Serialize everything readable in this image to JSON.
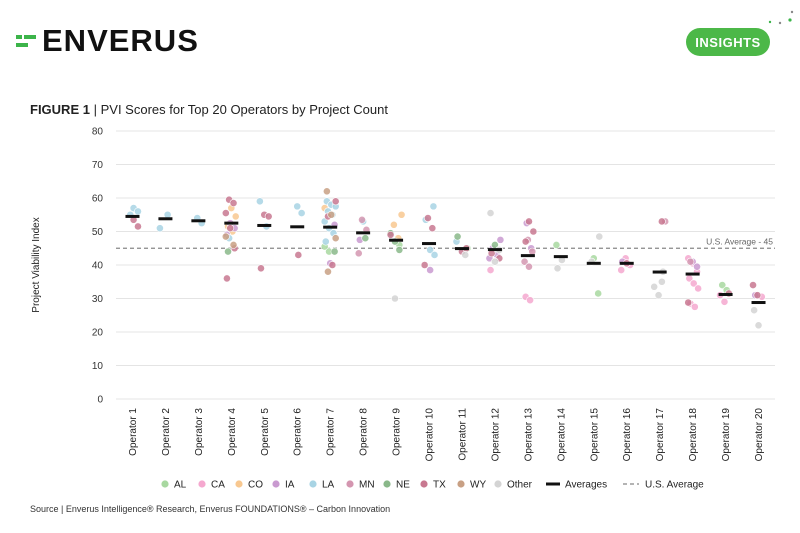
{
  "brand": {
    "name": "ENVERUS",
    "badge": "INSIGHTS",
    "accent": "#4cb848"
  },
  "figure": {
    "label": "FIGURE 1",
    "separator": "|",
    "title": "PVI Scores for Top 20 Operators by Project Count"
  },
  "source": "Source | Enverus Intelligence® Research, Enverus FOUNDATIONS® – Carbon Innovation",
  "chart_data": {
    "type": "scatter",
    "ylabel": "Project Viability Index",
    "ylim": [
      0,
      80
    ],
    "yticks": [
      0,
      10,
      20,
      30,
      40,
      50,
      60,
      70,
      80
    ],
    "categories": [
      "Operator 1",
      "Operator 2",
      "Operator 3",
      "Operator 4",
      "Operator 5",
      "Operator 6",
      "Operator 7",
      "Operator 8",
      "Operator 9",
      "Operator 10",
      "Operator 11",
      "Operator 12",
      "Operator 13",
      "Operator 14",
      "Operator 15",
      "Operator 16",
      "Operator 17",
      "Operator 18",
      "Operator 19",
      "Operator 20"
    ],
    "reference_line": {
      "value": 45,
      "label": "U.S. Average - 45",
      "color": "#888888"
    },
    "averages": [
      54.5,
      53.8,
      53.2,
      52.5,
      51.8,
      51.4,
      51.3,
      49.6,
      47.4,
      46.4,
      44.9,
      44.6,
      42.8,
      42.5,
      40.5,
      40.5,
      37.9,
      37.3,
      31.2,
      28.8
    ],
    "series": [
      {
        "name": "AL",
        "color": "#a8d8a0",
        "points": [
          [
            7,
            45.5
          ],
          [
            7,
            44
          ],
          [
            9,
            46
          ],
          [
            14,
            46
          ],
          [
            15,
            42
          ],
          [
            15,
            31.5
          ],
          [
            19,
            34
          ],
          [
            19,
            32.5
          ],
          [
            11,
            45
          ]
        ]
      },
      {
        "name": "CA",
        "color": "#f5a8cf",
        "points": [
          [
            13,
            30.5
          ],
          [
            13,
            29.5
          ],
          [
            16,
            38.5
          ],
          [
            16,
            42
          ],
          [
            16,
            40
          ],
          [
            18,
            42
          ],
          [
            18,
            40.5
          ],
          [
            18,
            38
          ],
          [
            18,
            36
          ],
          [
            18,
            34.5
          ],
          [
            18,
            33
          ],
          [
            18,
            28.5
          ],
          [
            18,
            27.5
          ],
          [
            19,
            31
          ],
          [
            19,
            29
          ],
          [
            20,
            30.5
          ],
          [
            12,
            38.5
          ]
        ]
      },
      {
        "name": "CO",
        "color": "#f8c890",
        "points": [
          [
            4,
            57
          ],
          [
            4,
            54.5
          ],
          [
            4,
            51.5
          ],
          [
            4,
            50
          ],
          [
            9,
            55
          ],
          [
            9,
            52
          ],
          [
            9,
            48
          ],
          [
            7,
            57
          ]
        ]
      },
      {
        "name": "IA",
        "color": "#c99ad0",
        "points": [
          [
            4,
            52.5
          ],
          [
            4,
            51
          ],
          [
            4,
            49
          ],
          [
            7,
            40.5
          ],
          [
            7,
            52
          ],
          [
            8,
            47.5
          ],
          [
            10,
            38.5
          ],
          [
            12,
            47.5
          ],
          [
            12,
            45
          ],
          [
            12,
            43
          ],
          [
            12,
            42
          ],
          [
            13,
            52.5
          ],
          [
            13,
            45
          ],
          [
            16,
            41
          ],
          [
            18,
            41
          ],
          [
            18,
            39.5
          ],
          [
            20,
            31
          ]
        ]
      },
      {
        "name": "LA",
        "color": "#a8d4e4",
        "points": [
          [
            1,
            57
          ],
          [
            1,
            56
          ],
          [
            1,
            55
          ],
          [
            2,
            55
          ],
          [
            2,
            51
          ],
          [
            3,
            54
          ],
          [
            3,
            52.5
          ],
          [
            5,
            59
          ],
          [
            6,
            57.5
          ],
          [
            6,
            55.5
          ],
          [
            7,
            59
          ],
          [
            7,
            58
          ],
          [
            7,
            57.5
          ],
          [
            7,
            56
          ],
          [
            7,
            55
          ],
          [
            7,
            53
          ],
          [
            7,
            51
          ],
          [
            7,
            49.5
          ],
          [
            7,
            47
          ],
          [
            8,
            53
          ],
          [
            10,
            57.5
          ],
          [
            10,
            53.5
          ],
          [
            10,
            44.5
          ],
          [
            10,
            43
          ],
          [
            4,
            48
          ],
          [
            5,
            51.5
          ],
          [
            11,
            47
          ]
        ]
      },
      {
        "name": "MN",
        "color": "#d496b0",
        "points": [
          [
            8,
            53.5
          ],
          [
            8,
            50.5
          ],
          [
            8,
            43.5
          ],
          [
            13,
            47.5
          ],
          [
            13,
            44
          ],
          [
            13,
            41
          ],
          [
            13,
            39.5
          ],
          [
            17,
            53
          ],
          [
            18,
            41
          ]
        ]
      },
      {
        "name": "NE",
        "color": "#8ab88a",
        "points": [
          [
            8,
            48
          ],
          [
            9,
            49.5
          ],
          [
            9,
            47
          ],
          [
            9,
            44.5
          ],
          [
            11,
            48.5
          ],
          [
            12,
            46
          ],
          [
            7,
            44
          ],
          [
            4,
            44
          ]
        ]
      },
      {
        "name": "TX",
        "color": "#c87890",
        "points": [
          [
            1,
            53.5
          ],
          [
            1,
            51.5
          ],
          [
            4,
            59.5
          ],
          [
            4,
            58.5
          ],
          [
            4,
            55.5
          ],
          [
            4,
            51
          ],
          [
            4,
            45
          ],
          [
            4,
            36
          ],
          [
            5,
            55
          ],
          [
            5,
            54.5
          ],
          [
            5,
            39
          ],
          [
            6,
            43
          ],
          [
            7,
            59
          ],
          [
            7,
            54.5
          ],
          [
            7,
            40
          ],
          [
            9,
            49
          ],
          [
            10,
            54
          ],
          [
            10,
            51
          ],
          [
            10,
            40
          ],
          [
            11,
            44
          ],
          [
            12,
            42
          ],
          [
            12,
            43.5
          ],
          [
            13,
            53
          ],
          [
            13,
            50
          ],
          [
            13,
            47
          ],
          [
            17,
            53
          ],
          [
            20,
            34
          ],
          [
            20,
            31
          ],
          [
            19,
            31.5
          ],
          [
            18,
            28.8
          ],
          [
            16,
            40.5
          ],
          [
            11,
            45
          ]
        ]
      },
      {
        "name": "WY",
        "color": "#c8a084",
        "points": [
          [
            7,
            62
          ],
          [
            7,
            55
          ],
          [
            7,
            48
          ],
          [
            7,
            38
          ],
          [
            4,
            46
          ],
          [
            4,
            48.5
          ]
        ]
      },
      {
        "name": "Other",
        "color": "#d4d4d4",
        "points": [
          [
            9,
            30
          ],
          [
            11,
            43
          ],
          [
            12,
            55.5
          ],
          [
            12,
            41
          ],
          [
            12,
            44.5
          ],
          [
            14,
            39
          ],
          [
            14,
            41.5
          ],
          [
            15,
            48.5
          ],
          [
            15,
            41
          ],
          [
            17,
            35
          ],
          [
            17,
            33.5
          ],
          [
            17,
            31
          ],
          [
            17,
            38
          ],
          [
            20,
            26.5
          ],
          [
            20,
            22
          ]
        ]
      }
    ],
    "legend": [
      {
        "label": "AL",
        "kind": "dot",
        "color": "#a8d8a0"
      },
      {
        "label": "CA",
        "kind": "dot",
        "color": "#f5a8cf"
      },
      {
        "label": "CO",
        "kind": "dot",
        "color": "#f8c890"
      },
      {
        "label": "IA",
        "kind": "dot",
        "color": "#c99ad0"
      },
      {
        "label": "LA",
        "kind": "dot",
        "color": "#a8d4e4"
      },
      {
        "label": "MN",
        "kind": "dot",
        "color": "#d496b0"
      },
      {
        "label": "NE",
        "kind": "dot",
        "color": "#8ab88a"
      },
      {
        "label": "TX",
        "kind": "dot",
        "color": "#c87890"
      },
      {
        "label": "WY",
        "kind": "dot",
        "color": "#c8a084"
      },
      {
        "label": "Other",
        "kind": "dot",
        "color": "#d4d4d4"
      },
      {
        "label": "Averages",
        "kind": "bar",
        "color": "#111111"
      },
      {
        "label": "U.S. Average",
        "kind": "dash",
        "color": "#888888"
      }
    ],
    "grid": true,
    "legend_position": "bottom"
  }
}
